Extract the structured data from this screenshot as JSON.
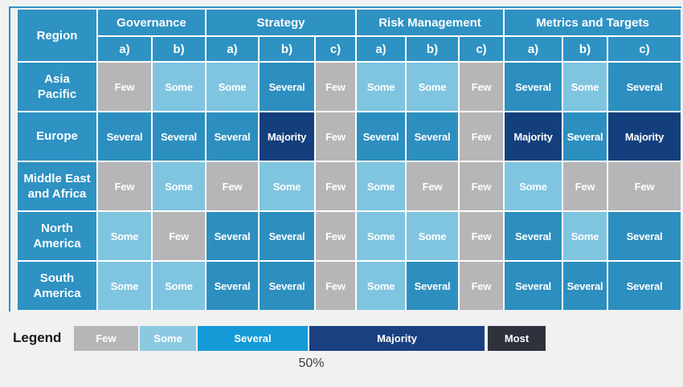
{
  "colors": {
    "page_bg": "#f1f1f2",
    "header_blue": "#2e92c3",
    "cell_few": "#b6b5b8",
    "cell_some": "#7fc5e0",
    "cell_several": "#2d8fbf",
    "cell_majority": "#133f7d",
    "cell_most": "#2e323d"
  },
  "table": {
    "region_header": "Region",
    "groups": [
      {
        "label": "Governance",
        "cols": [
          "a)",
          "b)"
        ]
      },
      {
        "label": "Strategy",
        "cols": [
          "a)",
          "b)",
          "c)"
        ]
      },
      {
        "label": "Risk Management",
        "cols": [
          "a)",
          "b)",
          "c)"
        ]
      },
      {
        "label": "Metrics and Targets",
        "cols": [
          "a)",
          "b)",
          "c)"
        ]
      }
    ],
    "rows": [
      {
        "region": "Asia\nPacific",
        "cells": [
          "Few",
          "Some",
          "Some",
          "Several",
          "Few",
          "Some",
          "Some",
          "Few",
          "Several",
          "Some",
          "Several"
        ]
      },
      {
        "region": "Europe",
        "cells": [
          "Several",
          "Several",
          "Several",
          "Majority",
          "Few",
          "Several",
          "Several",
          "Few",
          "Majority",
          "Several",
          "Majority"
        ]
      },
      {
        "region": "Middle East\nand Africa",
        "cells": [
          "Few",
          "Some",
          "Few",
          "Some",
          "Few",
          "Some",
          "Few",
          "Few",
          "Some",
          "Few",
          "Few"
        ]
      },
      {
        "region": "North\nAmerica",
        "cells": [
          "Some",
          "Few",
          "Several",
          "Several",
          "Few",
          "Some",
          "Some",
          "Few",
          "Several",
          "Some",
          "Several"
        ]
      },
      {
        "region": "South\nAmerica",
        "cells": [
          "Some",
          "Some",
          "Several",
          "Several",
          "Few",
          "Some",
          "Several",
          "Few",
          "Several",
          "Several",
          "Several"
        ]
      }
    ]
  },
  "legend": {
    "title": "Legend",
    "items": [
      {
        "label": "Few",
        "color": "#b6b5b8"
      },
      {
        "label": "Some",
        "color": "#8bc9e2"
      },
      {
        "label": "Several",
        "color": "#149bd7"
      },
      {
        "label": "Majority",
        "color": "#1a4080"
      },
      {
        "label": "Most",
        "color": "#2e323d"
      }
    ]
  },
  "footer": {
    "percentage": "50%"
  },
  "chart_data": {
    "type": "heatmap",
    "row_axis_label": "Region",
    "rows": [
      "Asia Pacific",
      "Europe",
      "Middle East and Africa",
      "North America",
      "South America"
    ],
    "columns": [
      "Governance a)",
      "Governance b)",
      "Strategy a)",
      "Strategy b)",
      "Strategy c)",
      "Risk Management a)",
      "Risk Management b)",
      "Risk Management c)",
      "Metrics and Targets a)",
      "Metrics and Targets b)",
      "Metrics and Targets c)"
    ],
    "values": [
      [
        "Few",
        "Some",
        "Some",
        "Several",
        "Few",
        "Some",
        "Some",
        "Few",
        "Several",
        "Some",
        "Several"
      ],
      [
        "Several",
        "Several",
        "Several",
        "Majority",
        "Few",
        "Several",
        "Several",
        "Few",
        "Majority",
        "Several",
        "Majority"
      ],
      [
        "Few",
        "Some",
        "Few",
        "Some",
        "Few",
        "Some",
        "Few",
        "Few",
        "Some",
        "Few",
        "Few"
      ],
      [
        "Some",
        "Few",
        "Several",
        "Several",
        "Few",
        "Some",
        "Some",
        "Few",
        "Several",
        "Some",
        "Several"
      ],
      [
        "Some",
        "Some",
        "Several",
        "Several",
        "Few",
        "Some",
        "Several",
        "Few",
        "Several",
        "Several",
        "Several"
      ]
    ],
    "scale_order": [
      "Few",
      "Some",
      "Several",
      "Majority",
      "Most"
    ],
    "legend_position": "bottom",
    "annotation": "50%"
  }
}
